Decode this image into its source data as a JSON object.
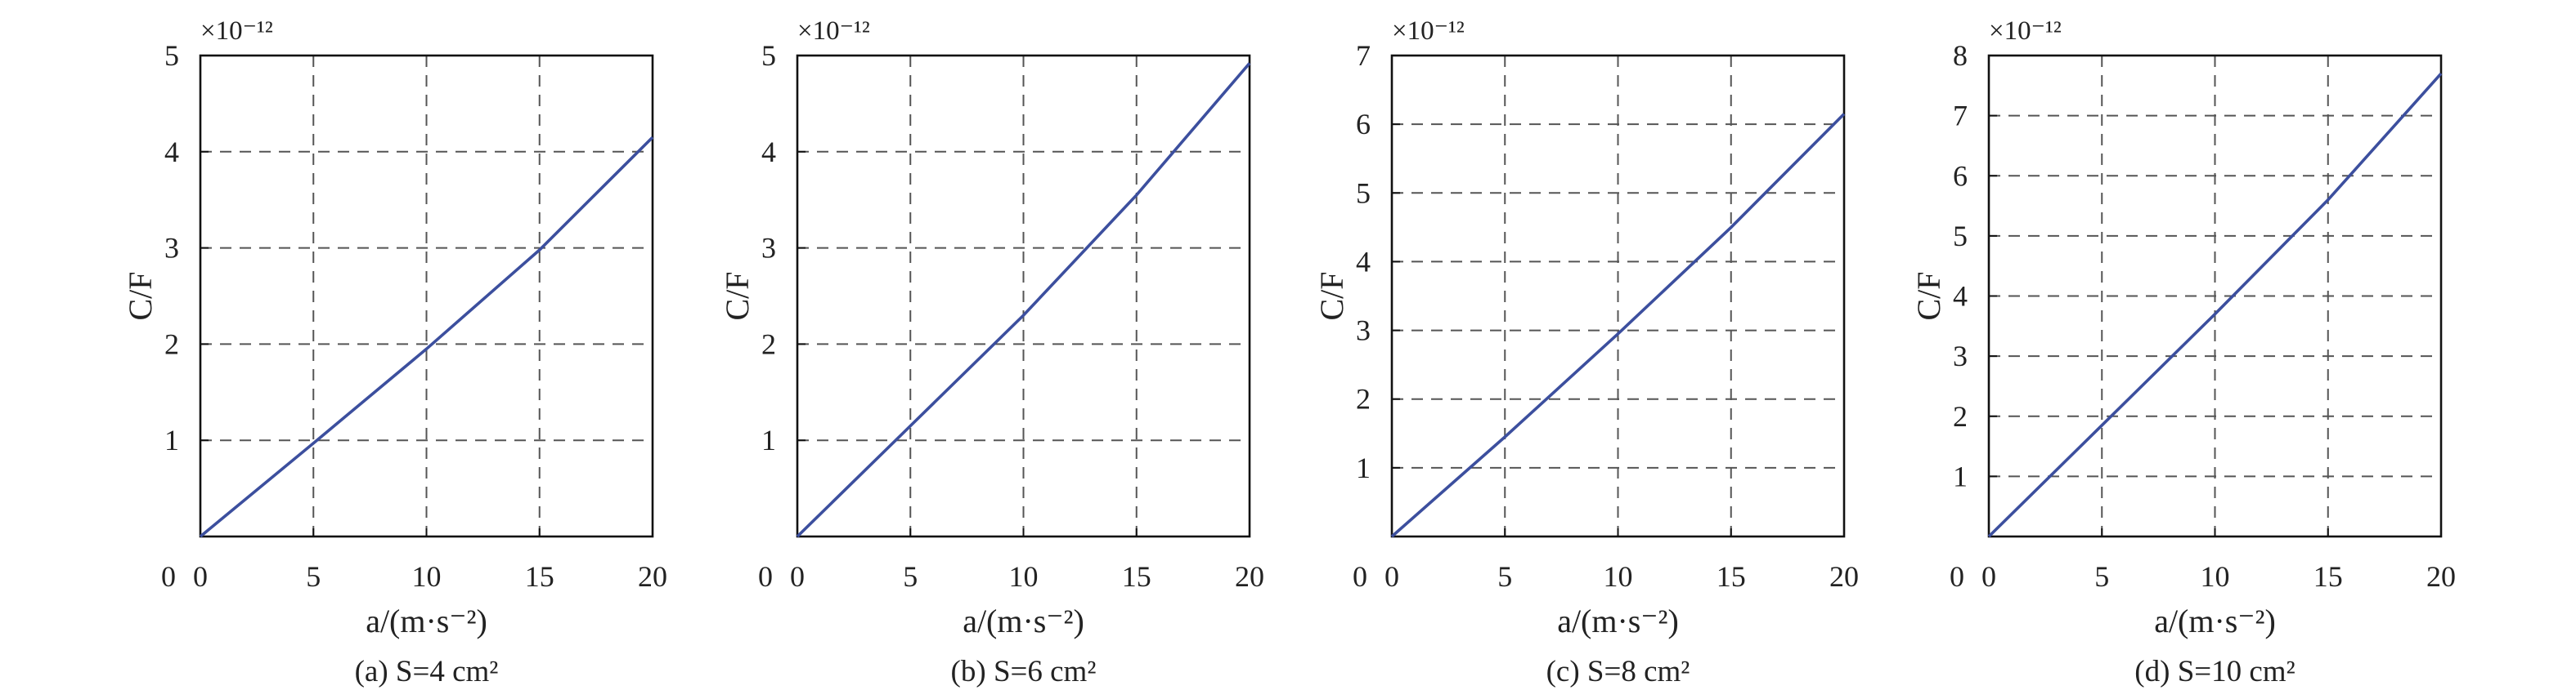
{
  "chart_data": [
    {
      "type": "line",
      "xlabel": "a/(m·s⁻²)",
      "ylabel": "C/F",
      "y_multiplier": "×10⁻¹²",
      "caption": "(a) S=4 cm²",
      "xlim": [
        0,
        20
      ],
      "ylim": [
        0,
        5
      ],
      "xticks": [
        "0",
        "5",
        "10",
        "15",
        "20"
      ],
      "yticks": [
        "1",
        "2",
        "3",
        "4",
        "5"
      ],
      "yticks_values": [
        1,
        2,
        3,
        4,
        5
      ],
      "grid": true,
      "x": [
        0,
        5,
        10,
        15,
        20
      ],
      "values": [
        0,
        0.97,
        1.95,
        2.98,
        4.15
      ]
    },
    {
      "type": "line",
      "xlabel": "a/(m·s⁻²)",
      "ylabel": "C/F",
      "y_multiplier": "×10⁻¹²",
      "caption": "(b) S=6 cm²",
      "xlim": [
        0,
        20
      ],
      "ylim": [
        0,
        5
      ],
      "xticks": [
        "0",
        "5",
        "10",
        "15",
        "20"
      ],
      "yticks": [
        "1",
        "2",
        "3",
        "4",
        "5"
      ],
      "yticks_values": [
        1,
        2,
        3,
        4,
        5
      ],
      "grid": true,
      "x": [
        0,
        5,
        10,
        15,
        20
      ],
      "values": [
        0,
        1.15,
        2.3,
        3.55,
        4.92
      ]
    },
    {
      "type": "line",
      "xlabel": "a/(m·s⁻²)",
      "ylabel": "C/F",
      "y_multiplier": "×10⁻¹²",
      "caption": "(c) S=8 cm²",
      "xlim": [
        0,
        20
      ],
      "ylim": [
        0,
        7
      ],
      "xticks": [
        "0",
        "5",
        "10",
        "15",
        "20"
      ],
      "yticks": [
        "1",
        "2",
        "3",
        "4",
        "5",
        "6",
        "7"
      ],
      "yticks_values": [
        1,
        2,
        3,
        4,
        5,
        6,
        7
      ],
      "grid": true,
      "x": [
        0,
        5,
        10,
        15,
        20
      ],
      "values": [
        0,
        1.45,
        2.95,
        4.5,
        6.15
      ]
    },
    {
      "type": "line",
      "xlabel": "a/(m·s⁻²)",
      "ylabel": "C/F",
      "y_multiplier": "×10⁻¹²",
      "caption": "(d) S=10 cm²",
      "xlim": [
        0,
        20
      ],
      "ylim": [
        0,
        8
      ],
      "xticks": [
        "0",
        "5",
        "10",
        "15",
        "20"
      ],
      "yticks": [
        "1",
        "2",
        "3",
        "4",
        "5",
        "6",
        "7",
        "8"
      ],
      "yticks_values": [
        1,
        2,
        3,
        4,
        5,
        6,
        7,
        8
      ],
      "grid": true,
      "x": [
        0,
        5,
        10,
        15,
        20
      ],
      "values": [
        0,
        1.85,
        3.7,
        5.6,
        7.7
      ]
    }
  ],
  "colors": {
    "series": "#3c4f9e",
    "frame": "#111111",
    "grid": "#555555"
  }
}
